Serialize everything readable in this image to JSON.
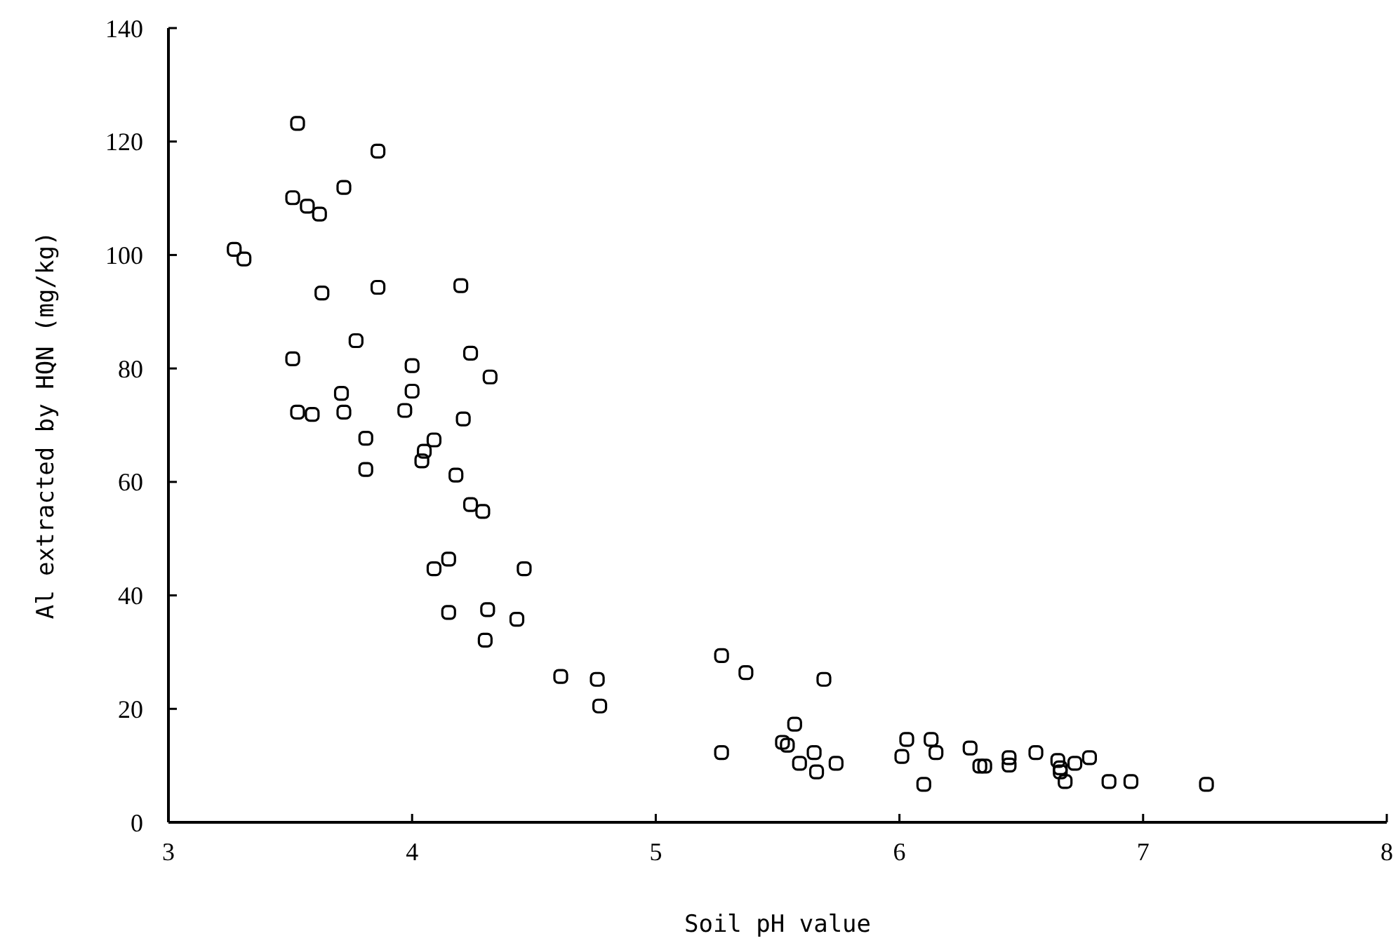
{
  "chart_data": {
    "type": "scatter",
    "xlabel": "Soil pH value",
    "ylabel": "Al extracted by HQN (mg/kg)",
    "xlim": [
      3,
      8
    ],
    "xticks": [
      3,
      4,
      5,
      6,
      7,
      8
    ],
    "ylim": [
      0,
      140
    ],
    "yticks": [
      0,
      20,
      40,
      60,
      80,
      100,
      120,
      140
    ],
    "grid": false,
    "marker": "square",
    "series": [
      {
        "color": "#000000",
        "x": [
          3.53,
          3.86,
          3.72,
          3.51,
          3.57,
          3.62,
          3.27,
          3.31,
          3.63,
          3.86,
          4.2,
          3.77,
          4.24,
          3.51,
          4.0,
          4.32,
          3.71,
          4.0,
          3.53,
          3.59,
          3.72,
          3.97,
          4.21,
          3.81,
          4.09,
          4.05,
          4.04,
          3.81,
          4.18,
          4.24,
          4.29,
          4.09,
          4.15,
          4.46,
          4.15,
          4.31,
          4.43,
          4.3,
          4.61,
          4.76,
          4.77,
          5.27,
          5.37,
          5.69,
          5.57,
          5.27,
          5.52,
          5.54,
          5.65,
          5.59,
          5.74,
          5.66,
          6.03,
          6.13,
          6.01,
          6.15,
          6.1,
          6.29,
          6.33,
          6.35,
          6.45,
          6.45,
          6.56,
          6.65,
          6.66,
          6.66,
          6.72,
          6.78,
          6.68,
          6.86,
          6.95,
          7.26
        ],
        "values": [
          123.2,
          118.3,
          111.9,
          110.1,
          108.6,
          107.2,
          101.0,
          99.3,
          93.3,
          94.3,
          94.6,
          84.9,
          82.7,
          81.7,
          80.5,
          78.5,
          75.6,
          76.0,
          72.3,
          71.9,
          72.3,
          72.6,
          71.1,
          67.7,
          67.4,
          65.4,
          63.7,
          62.2,
          61.2,
          56.0,
          54.8,
          44.7,
          46.4,
          44.7,
          37.0,
          37.5,
          35.8,
          32.1,
          25.7,
          25.2,
          20.5,
          29.4,
          26.4,
          25.2,
          17.3,
          12.3,
          14.1,
          13.6,
          12.3,
          10.4,
          10.4,
          8.9,
          14.6,
          14.6,
          11.6,
          12.3,
          6.7,
          13.1,
          9.9,
          9.9,
          11.4,
          10.1,
          12.3,
          10.9,
          9.6,
          8.9,
          10.4,
          11.4,
          7.2,
          7.2,
          7.2,
          6.7
        ]
      }
    ]
  }
}
